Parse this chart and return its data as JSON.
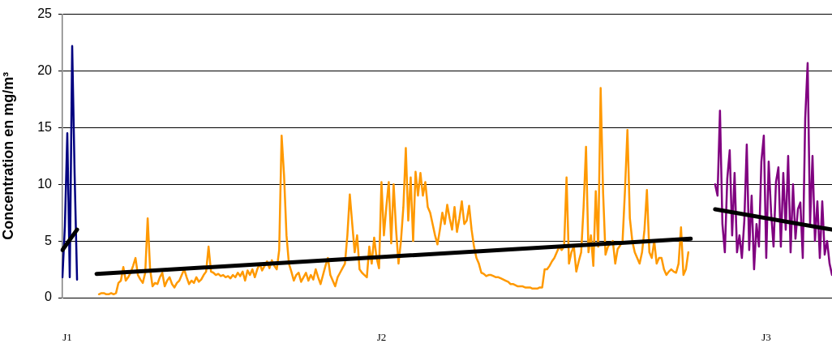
{
  "chart_data": {
    "type": "line",
    "ylabel": "Concentration en mg/m³",
    "categories": [
      null,
      null,
      "J1",
      null,
      null,
      null,
      null,
      null,
      null,
      null,
      null,
      null,
      null,
      null,
      null,
      null,
      null,
      null,
      null,
      null,
      null,
      null,
      null,
      null,
      null,
      null,
      null,
      null,
      null,
      null,
      null,
      null,
      null,
      null,
      null,
      null,
      null,
      null,
      null,
      null,
      null,
      null,
      null,
      null,
      null,
      null,
      null,
      null,
      null,
      null,
      null,
      null,
      null,
      null,
      null,
      null,
      null,
      null,
      null,
      null,
      null,
      null,
      null,
      null,
      null,
      null,
      null,
      null,
      null,
      null,
      null,
      null,
      null,
      null,
      null,
      null,
      null,
      null,
      null,
      null,
      null,
      null,
      null,
      null,
      null,
      null,
      null,
      null,
      null,
      null,
      null,
      null,
      null,
      null,
      null,
      null,
      null,
      null,
      null,
      null,
      null,
      null,
      null,
      null,
      null,
      null,
      null,
      null,
      null,
      null,
      null,
      null,
      null,
      null,
      null,
      null,
      null,
      null,
      null,
      null,
      null,
      null,
      null,
      null,
      null,
      null,
      null,
      null,
      null,
      null,
      null,
      "J2",
      null,
      null,
      null,
      null,
      null,
      null,
      null,
      null,
      null,
      null,
      null,
      null,
      null,
      null,
      null,
      null,
      null,
      null,
      null,
      null,
      null,
      null,
      null,
      null,
      null,
      null,
      null,
      null,
      null,
      null,
      null,
      null,
      null,
      null,
      null,
      null,
      null,
      null,
      null,
      null,
      null,
      null,
      null,
      null,
      null,
      null,
      null,
      null,
      null,
      null,
      null,
      null,
      null,
      null,
      null,
      null,
      null,
      null,
      null,
      null,
      null,
      null,
      null,
      null,
      null,
      null,
      null,
      null,
      null,
      null,
      null,
      null,
      null,
      null,
      null,
      null,
      null,
      null,
      null,
      null,
      null,
      null,
      null,
      null,
      null,
      null,
      null,
      null,
      null,
      null,
      null,
      null,
      null,
      null,
      null,
      null,
      null,
      null,
      null,
      null,
      null,
      null,
      null,
      null,
      null,
      null,
      null,
      null,
      null,
      null,
      null,
      null,
      null,
      null,
      null,
      null,
      null,
      null,
      null,
      null,
      null,
      null,
      null,
      null,
      null,
      null,
      null,
      null,
      null,
      null,
      null,
      null,
      null,
      null,
      null,
      null,
      null,
      null,
      null,
      null,
      null,
      null,
      null,
      null,
      null,
      null,
      null,
      null,
      null,
      null,
      null,
      null,
      null,
      null,
      null,
      null,
      null,
      "J3",
      null,
      null,
      null,
      null,
      null,
      null,
      null,
      null,
      null,
      null,
      null,
      null,
      null,
      null,
      null,
      null,
      null,
      null,
      null,
      null,
      null,
      null,
      null,
      null,
      null,
      null,
      null
    ],
    "ylim": [
      0,
      25
    ],
    "yticks": [
      0,
      5,
      10,
      15,
      20,
      25
    ],
    "grid": "y",
    "legend": false,
    "marker": "none",
    "line_style": "solid",
    "series": [
      {
        "color": "#000080",
        "values": [
          1.8,
          6.3,
          14.5,
          1.8,
          22.2,
          10.9,
          1.6,
          null,
          null,
          null,
          null,
          null,
          null,
          null,
          null,
          null,
          null,
          null,
          null,
          null,
          null,
          null,
          null,
          null,
          null,
          null,
          null,
          null,
          null,
          null,
          null,
          null,
          null,
          null,
          null,
          null,
          null,
          null,
          null,
          null,
          null,
          null,
          null,
          null,
          null,
          null,
          null,
          null,
          null,
          null,
          null,
          null,
          null,
          null,
          null,
          null,
          null,
          null,
          null,
          null,
          null,
          null,
          null,
          null,
          null,
          null,
          null,
          null,
          null,
          null,
          null,
          null,
          null,
          null,
          null,
          null,
          null,
          null,
          null,
          null,
          null,
          null,
          null,
          null,
          null,
          null,
          null,
          null,
          null,
          null,
          null,
          null,
          null,
          null,
          null,
          null,
          null,
          null,
          null,
          null,
          null,
          null,
          null,
          null,
          null,
          null,
          null,
          null,
          null,
          null,
          null,
          null,
          null,
          null,
          null,
          null,
          null,
          null,
          null,
          null,
          null,
          null,
          null,
          null,
          null,
          null,
          null,
          null,
          null,
          null,
          null,
          null,
          null,
          null,
          null,
          null,
          null,
          null,
          null,
          null,
          null,
          null,
          null,
          null,
          null,
          null,
          null,
          null,
          null,
          null,
          null,
          null,
          null,
          null,
          null,
          null,
          null,
          null,
          null,
          null,
          null,
          null,
          null,
          null,
          null,
          null,
          null,
          null,
          null,
          null,
          null,
          null,
          null,
          null,
          null,
          null,
          null,
          null,
          null,
          null,
          null,
          null,
          null,
          null,
          null,
          null,
          null,
          null,
          null,
          null,
          null,
          null,
          null,
          null,
          null,
          null,
          null,
          null,
          null,
          null,
          null,
          null,
          null,
          null,
          null,
          null,
          null,
          null,
          null,
          null,
          null,
          null,
          null,
          null,
          null,
          null,
          null,
          null,
          null,
          null,
          null,
          null,
          null,
          null,
          null,
          null,
          null,
          null,
          null,
          null,
          null,
          null,
          null,
          null,
          null,
          null,
          null,
          null,
          null,
          null,
          null,
          null,
          null,
          null,
          null,
          null,
          null,
          null,
          null,
          null,
          null,
          null,
          null,
          null,
          null,
          null,
          null,
          null,
          null,
          null,
          null,
          null,
          null,
          null,
          null,
          null,
          null,
          null,
          null,
          null,
          null,
          null,
          null,
          null,
          null,
          null,
          null,
          null,
          null,
          null,
          null,
          null,
          null,
          null,
          null,
          null,
          null,
          null,
          null,
          null,
          null,
          null,
          null,
          null,
          null,
          null,
          null,
          null,
          null,
          null,
          null,
          null,
          null,
          null,
          null,
          null,
          null,
          null,
          null,
          null,
          null,
          null,
          null,
          null,
          null,
          null,
          null
        ]
      },
      {
        "color": "#ff9900",
        "values": [
          null,
          null,
          null,
          null,
          null,
          null,
          null,
          null,
          null,
          null,
          null,
          null,
          null,
          null,
          null,
          0.3,
          0.4,
          0.4,
          0.3,
          0.3,
          0.4,
          0.3,
          0.4,
          1.3,
          1.5,
          2.7,
          1.5,
          1.8,
          2.2,
          2.8,
          3.5,
          2.0,
          1.6,
          1.3,
          2.2,
          7.0,
          2.5,
          1.0,
          1.3,
          1.2,
          1.8,
          2.2,
          1.0,
          1.5,
          1.8,
          1.2,
          0.9,
          1.3,
          1.5,
          2.0,
          2.5,
          1.8,
          1.2,
          1.5,
          1.3,
          1.8,
          1.4,
          1.6,
          2.0,
          2.3,
          4.5,
          2.3,
          2.2,
          2.0,
          2.1,
          1.9,
          2.0,
          1.8,
          1.9,
          1.7,
          2.0,
          1.8,
          2.2,
          1.9,
          2.3,
          1.5,
          2.4,
          2.0,
          2.5,
          1.8,
          2.5,
          3.0,
          2.4,
          2.8,
          3.2,
          2.6,
          3.3,
          2.8,
          2.5,
          4.2,
          14.3,
          10.8,
          5.5,
          3.0,
          2.3,
          1.5,
          2.0,
          2.2,
          1.4,
          1.8,
          2.2,
          1.5,
          2.0,
          1.6,
          2.5,
          1.8,
          1.2,
          2.0,
          2.8,
          3.5,
          2.0,
          1.5,
          1.0,
          1.8,
          2.2,
          2.6,
          3.0,
          5.5,
          9.1,
          6.5,
          4.0,
          5.5,
          2.5,
          2.2,
          2.0,
          1.8,
          4.5,
          3.0,
          5.3,
          3.5,
          2.6,
          10.2,
          5.5,
          8.0,
          10.2,
          4.8,
          10.0,
          6.0,
          3.0,
          5.0,
          8.0,
          13.2,
          6.8,
          10.6,
          5.0,
          11.1,
          9.0,
          11.0,
          9.0,
          10.2,
          8.0,
          7.5,
          6.5,
          5.5,
          4.7,
          6.0,
          7.5,
          6.5,
          8.2,
          7.0,
          6.0,
          8.0,
          5.8,
          7.0,
          8.5,
          6.5,
          6.8,
          8.1,
          6.0,
          4.5,
          3.5,
          3.0,
          2.2,
          2.1,
          1.9,
          2.0,
          2.0,
          1.9,
          1.8,
          1.8,
          1.7,
          1.6,
          1.5,
          1.4,
          1.2,
          1.2,
          1.1,
          1.0,
          1.0,
          1.0,
          0.9,
          0.9,
          0.9,
          0.8,
          0.8,
          0.8,
          0.9,
          0.9,
          2.5,
          2.5,
          2.8,
          3.2,
          3.5,
          4.0,
          4.5,
          4.2,
          4.5,
          10.6,
          3.0,
          4.0,
          4.5,
          2.3,
          3.2,
          4.0,
          8.0,
          13.3,
          4.0,
          5.5,
          2.8,
          9.4,
          4.5,
          18.5,
          9.3,
          3.8,
          4.5,
          4.8,
          5.0,
          3.0,
          4.3,
          4.6,
          5.0,
          9.5,
          14.8,
          7.0,
          5.0,
          4.0,
          3.5,
          3.0,
          4.0,
          6.0,
          9.5,
          4.0,
          3.5,
          5.0,
          3.0,
          3.5,
          3.5,
          2.5,
          2.0,
          2.3,
          2.5,
          2.3,
          2.2,
          3.0,
          6.2,
          2.0,
          2.5,
          4.0,
          null,
          null,
          null,
          null,
          null,
          null,
          null,
          null,
          null,
          null,
          null,
          null,
          null,
          null,
          null,
          null,
          null,
          null,
          null,
          null,
          null,
          null,
          null,
          null,
          null,
          null,
          null,
          null,
          null,
          null,
          null,
          null,
          null,
          null,
          null,
          null,
          null,
          null,
          null,
          null,
          null,
          null,
          null,
          null,
          null,
          null,
          null,
          null,
          null,
          null,
          null,
          null,
          null,
          null,
          null,
          null,
          null,
          null,
          null
        ]
      },
      {
        "color": "#800080",
        "values": [
          null,
          null,
          null,
          null,
          null,
          null,
          null,
          null,
          null,
          null,
          null,
          null,
          null,
          null,
          null,
          null,
          null,
          null,
          null,
          null,
          null,
          null,
          null,
          null,
          null,
          null,
          null,
          null,
          null,
          null,
          null,
          null,
          null,
          null,
          null,
          null,
          null,
          null,
          null,
          null,
          null,
          null,
          null,
          null,
          null,
          null,
          null,
          null,
          null,
          null,
          null,
          null,
          null,
          null,
          null,
          null,
          null,
          null,
          null,
          null,
          null,
          null,
          null,
          null,
          null,
          null,
          null,
          null,
          null,
          null,
          null,
          null,
          null,
          null,
          null,
          null,
          null,
          null,
          null,
          null,
          null,
          null,
          null,
          null,
          null,
          null,
          null,
          null,
          null,
          null,
          null,
          null,
          null,
          null,
          null,
          null,
          null,
          null,
          null,
          null,
          null,
          null,
          null,
          null,
          null,
          null,
          null,
          null,
          null,
          null,
          null,
          null,
          null,
          null,
          null,
          null,
          null,
          null,
          null,
          null,
          null,
          null,
          null,
          null,
          null,
          null,
          null,
          null,
          null,
          null,
          null,
          null,
          null,
          null,
          null,
          null,
          null,
          null,
          null,
          null,
          null,
          null,
          null,
          null,
          null,
          null,
          null,
          null,
          null,
          null,
          null,
          null,
          null,
          null,
          null,
          null,
          null,
          null,
          null,
          null,
          null,
          null,
          null,
          null,
          null,
          null,
          null,
          null,
          null,
          null,
          null,
          null,
          null,
          null,
          null,
          null,
          null,
          null,
          null,
          null,
          null,
          null,
          null,
          null,
          null,
          null,
          null,
          null,
          null,
          null,
          null,
          null,
          null,
          null,
          null,
          null,
          null,
          null,
          null,
          null,
          null,
          null,
          null,
          null,
          null,
          null,
          null,
          null,
          null,
          null,
          null,
          null,
          null,
          null,
          null,
          null,
          null,
          null,
          null,
          null,
          null,
          null,
          null,
          null,
          null,
          null,
          null,
          null,
          null,
          null,
          null,
          null,
          null,
          null,
          null,
          null,
          null,
          null,
          null,
          null,
          null,
          null,
          null,
          null,
          null,
          null,
          null,
          null,
          null,
          null,
          null,
          null,
          null,
          null,
          null,
          null,
          null,
          null,
          null,
          null,
          null,
          null,
          null,
          null,
          null,
          null,
          null,
          null,
          10.0,
          9.0,
          16.5,
          6.5,
          4.0,
          10.5,
          13.0,
          5.5,
          11.0,
          4.0,
          5.5,
          3.5,
          6.8,
          13.5,
          4.2,
          9.0,
          2.5,
          6.5,
          4.5,
          12.0,
          14.3,
          3.5,
          12.0,
          7.5,
          4.5,
          10.2,
          11.5,
          4.5,
          11.0,
          6.0,
          12.5,
          4.0,
          10.0,
          5.2,
          7.8,
          8.4,
          3.5,
          15.8,
          20.7,
          6.5,
          12.5,
          5.0,
          8.5,
          3.5,
          8.5,
          3.8,
          5.0,
          3.0,
          2.0
        ]
      },
      {
        "type": "line",
        "color": "#000000",
        "values": [
          4.2,
          null,
          null,
          null,
          null,
          null,
          6.0,
          null,
          null,
          null,
          null,
          null,
          null,
          null,
          null,
          null,
          null,
          null,
          null,
          null,
          null,
          null,
          null,
          null,
          null,
          null,
          null,
          null,
          null,
          null,
          null,
          null,
          null,
          null,
          null,
          null,
          null,
          null,
          null,
          null,
          null,
          null,
          null,
          null,
          null,
          null,
          null,
          null,
          null,
          null,
          null,
          null,
          null,
          null,
          null,
          null,
          null,
          null,
          null,
          null,
          null,
          null,
          null,
          null,
          null,
          null,
          null,
          null,
          null,
          null,
          null,
          null,
          null,
          null,
          null,
          null,
          null,
          null,
          null,
          null,
          null,
          null,
          null,
          null,
          null,
          null,
          null,
          null,
          null,
          null,
          null,
          null,
          null,
          null,
          null,
          null,
          null,
          null,
          null,
          null,
          null,
          null,
          null,
          null,
          null,
          null,
          null,
          null,
          null,
          null,
          null,
          null,
          null,
          null,
          null,
          null,
          null,
          null,
          null,
          null,
          null,
          null,
          null,
          null,
          null,
          null,
          null,
          null,
          null,
          null,
          null,
          null,
          null,
          null,
          null,
          null,
          null,
          null,
          null,
          null,
          null,
          null,
          null,
          null,
          null,
          null,
          null,
          null,
          null,
          null,
          null,
          null,
          null,
          null,
          null,
          null,
          null,
          null,
          null,
          null,
          null,
          null,
          null,
          null,
          null,
          null,
          null,
          null,
          null,
          null,
          null,
          null,
          null,
          null,
          null,
          null,
          null,
          null,
          null,
          null,
          null,
          null,
          null,
          null,
          null,
          null,
          null,
          null,
          null,
          null,
          null,
          null,
          null,
          null,
          null,
          null,
          null,
          null,
          null,
          null,
          null,
          null,
          null,
          null,
          null,
          null,
          null,
          null,
          null,
          null,
          null,
          null,
          null,
          null,
          null,
          null,
          null,
          null,
          null,
          null,
          null,
          null,
          null,
          null,
          null,
          null,
          null,
          null,
          null,
          null,
          null,
          null,
          null,
          null,
          null,
          null,
          null,
          null,
          null,
          null,
          null,
          null,
          null,
          null,
          null,
          null,
          null,
          null,
          null,
          null,
          null,
          null,
          null,
          null,
          null,
          null,
          null,
          null,
          null,
          null,
          null,
          null,
          null,
          null,
          null,
          null,
          null,
          null,
          null,
          null,
          null,
          null,
          null,
          null,
          null,
          null,
          null,
          null,
          null,
          null,
          null,
          null,
          null,
          null,
          null,
          null,
          null,
          null,
          null,
          null,
          null,
          null,
          null,
          null,
          null,
          null,
          null,
          null,
          null,
          null,
          null,
          null,
          null,
          null,
          null,
          null,
          null,
          null,
          null,
          null,
          null,
          null,
          null,
          null,
          null,
          null,
          null
        ]
      },
      {
        "type": "line",
        "color": "#000000",
        "values": [
          null,
          null,
          null,
          null,
          null,
          null,
          null,
          null,
          null,
          null,
          null,
          null,
          null,
          null,
          2.1,
          null,
          null,
          null,
          null,
          null,
          null,
          null,
          null,
          null,
          null,
          null,
          null,
          null,
          null,
          null,
          null,
          null,
          null,
          null,
          null,
          null,
          null,
          null,
          null,
          null,
          null,
          null,
          null,
          null,
          null,
          null,
          null,
          null,
          null,
          null,
          null,
          null,
          null,
          null,
          null,
          null,
          null,
          null,
          null,
          null,
          null,
          null,
          null,
          null,
          null,
          null,
          null,
          null,
          null,
          null,
          null,
          null,
          null,
          null,
          null,
          null,
          null,
          null,
          null,
          null,
          null,
          null,
          null,
          null,
          null,
          null,
          null,
          null,
          null,
          null,
          null,
          null,
          null,
          null,
          null,
          null,
          null,
          null,
          null,
          null,
          null,
          null,
          null,
          null,
          null,
          null,
          null,
          null,
          null,
          null,
          null,
          null,
          null,
          null,
          null,
          null,
          null,
          null,
          null,
          null,
          null,
          null,
          null,
          null,
          null,
          null,
          null,
          null,
          null,
          null,
          null,
          null,
          null,
          null,
          null,
          null,
          null,
          null,
          null,
          null,
          null,
          null,
          null,
          null,
          null,
          null,
          null,
          null,
          null,
          null,
          null,
          null,
          null,
          null,
          null,
          null,
          null,
          null,
          null,
          null,
          null,
          null,
          null,
          null,
          null,
          null,
          null,
          null,
          null,
          null,
          null,
          null,
          null,
          null,
          null,
          null,
          null,
          null,
          null,
          null,
          null,
          null,
          null,
          null,
          null,
          null,
          null,
          null,
          null,
          null,
          null,
          null,
          null,
          null,
          null,
          null,
          null,
          null,
          null,
          null,
          null,
          null,
          null,
          null,
          null,
          null,
          null,
          null,
          null,
          null,
          null,
          null,
          null,
          null,
          null,
          null,
          null,
          null,
          null,
          null,
          null,
          null,
          null,
          null,
          null,
          null,
          null,
          null,
          null,
          null,
          null,
          null,
          null,
          null,
          null,
          null,
          null,
          null,
          null,
          null,
          null,
          null,
          null,
          null,
          null,
          null,
          null,
          null,
          null,
          null,
          null,
          null,
          null,
          null,
          null,
          null,
          null,
          null,
          5.2,
          null,
          null,
          null,
          null,
          null,
          null,
          null,
          null,
          null,
          null,
          null,
          null,
          null,
          null,
          null,
          null,
          null,
          null,
          null,
          null,
          null,
          null,
          null,
          null,
          null,
          null,
          null,
          null,
          null,
          null,
          null,
          null,
          null,
          null,
          null,
          null,
          null,
          null,
          null,
          null,
          null,
          null,
          null,
          null,
          null,
          null,
          null,
          null,
          null,
          null,
          null,
          null,
          null,
          null,
          null,
          null,
          null,
          null
        ]
      },
      {
        "type": "line",
        "color": "#000000",
        "values": [
          null,
          null,
          null,
          null,
          null,
          null,
          null,
          null,
          null,
          null,
          null,
          null,
          null,
          null,
          null,
          null,
          null,
          null,
          null,
          null,
          null,
          null,
          null,
          null,
          null,
          null,
          null,
          null,
          null,
          null,
          null,
          null,
          null,
          null,
          null,
          null,
          null,
          null,
          null,
          null,
          null,
          null,
          null,
          null,
          null,
          null,
          null,
          null,
          null,
          null,
          null,
          null,
          null,
          null,
          null,
          null,
          null,
          null,
          null,
          null,
          null,
          null,
          null,
          null,
          null,
          null,
          null,
          null,
          null,
          null,
          null,
          null,
          null,
          null,
          null,
          null,
          null,
          null,
          null,
          null,
          null,
          null,
          null,
          null,
          null,
          null,
          null,
          null,
          null,
          null,
          null,
          null,
          null,
          null,
          null,
          null,
          null,
          null,
          null,
          null,
          null,
          null,
          null,
          null,
          null,
          null,
          null,
          null,
          null,
          null,
          null,
          null,
          null,
          null,
          null,
          null,
          null,
          null,
          null,
          null,
          null,
          null,
          null,
          null,
          null,
          null,
          null,
          null,
          null,
          null,
          null,
          null,
          null,
          null,
          null,
          null,
          null,
          null,
          null,
          null,
          null,
          null,
          null,
          null,
          null,
          null,
          null,
          null,
          null,
          null,
          null,
          null,
          null,
          null,
          null,
          null,
          null,
          null,
          null,
          null,
          null,
          null,
          null,
          null,
          null,
          null,
          null,
          null,
          null,
          null,
          null,
          null,
          null,
          null,
          null,
          null,
          null,
          null,
          null,
          null,
          null,
          null,
          null,
          null,
          null,
          null,
          null,
          null,
          null,
          null,
          null,
          null,
          null,
          null,
          null,
          null,
          null,
          null,
          null,
          null,
          null,
          null,
          null,
          null,
          null,
          null,
          null,
          null,
          null,
          null,
          null,
          null,
          null,
          null,
          null,
          null,
          null,
          null,
          null,
          null,
          null,
          null,
          null,
          null,
          null,
          null,
          null,
          null,
          null,
          null,
          null,
          null,
          null,
          null,
          null,
          null,
          null,
          null,
          null,
          null,
          null,
          null,
          null,
          null,
          null,
          null,
          null,
          null,
          null,
          null,
          null,
          null,
          null,
          null,
          null,
          null,
          null,
          null,
          null,
          null,
          null,
          null,
          null,
          null,
          null,
          null,
          null,
          null,
          7.8,
          null,
          null,
          null,
          null,
          null,
          null,
          null,
          null,
          null,
          null,
          null,
          null,
          null,
          null,
          null,
          null,
          null,
          null,
          null,
          null,
          null,
          null,
          null,
          null,
          null,
          null,
          null,
          null,
          null,
          null,
          null,
          null,
          null,
          null,
          null,
          null,
          null,
          null,
          null,
          null,
          null,
          null,
          null,
          null,
          null,
          null,
          null,
          6.0
        ]
      }
    ]
  }
}
